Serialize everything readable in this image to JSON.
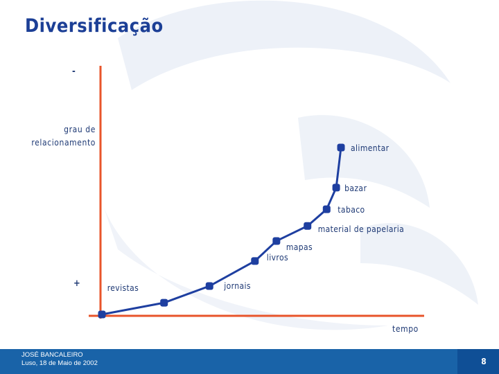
{
  "title": "Diversificação",
  "y_axis": {
    "label_line1": "grau de",
    "label_line2": "relacionamento",
    "top_sign": "-",
    "bottom_sign": "+"
  },
  "x_axis": {
    "label": "tempo"
  },
  "chart_data": {
    "type": "line",
    "xlabel": "tempo",
    "ylabel": "grau de relacionamento",
    "points": [
      {
        "label": "",
        "x": 0.0,
        "y": 0.0
      },
      {
        "label": "revistas",
        "x": 0.26,
        "y": 0.07
      },
      {
        "label": "jornais",
        "x": 0.45,
        "y": 0.17
      },
      {
        "label": "livros",
        "x": 0.64,
        "y": 0.32
      },
      {
        "label": "mapas",
        "x": 0.73,
        "y": 0.44
      },
      {
        "label": "material de papelaria",
        "x": 0.86,
        "y": 0.53
      },
      {
        "label": "tabaco",
        "x": 0.94,
        "y": 0.63
      },
      {
        "label": "bazar",
        "x": 0.98,
        "y": 0.76
      },
      {
        "label": "alimentar",
        "x": 1.0,
        "y": 1.0
      }
    ],
    "line_color": "#1e3fa0",
    "axis_color": "#e8542a"
  },
  "footer": {
    "author": "JOSÉ BANCALEIRO",
    "date": "Luso, 18 de Maio de 2002",
    "page": "8"
  },
  "colors": {
    "title": "#1c3f96",
    "footer": "#1963a8",
    "swirl": "#e9eef6"
  }
}
